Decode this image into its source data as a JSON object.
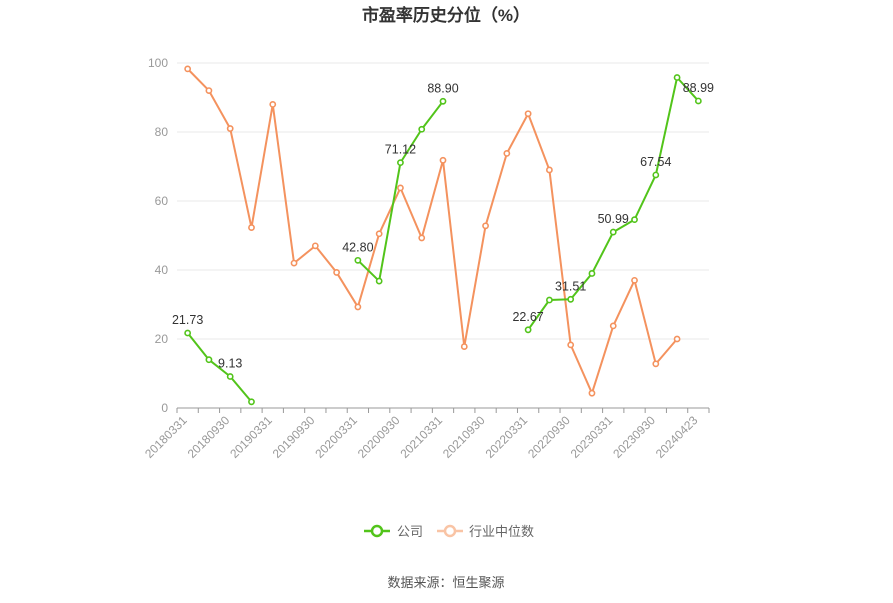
{
  "chart_data": {
    "type": "line",
    "title": "市盈率历史分位（%）",
    "xlabel": "",
    "ylabel": "",
    "ylim": [
      0,
      100
    ],
    "yticks": [
      0,
      20,
      40,
      60,
      80,
      100
    ],
    "grid": true,
    "legend_position": "bottom",
    "categories": [
      "20180331",
      "20180630",
      "20180930",
      "20181231",
      "20190331",
      "20190630",
      "20190930",
      "20191231",
      "20200331",
      "20200630",
      "20200930",
      "20201231",
      "20210331",
      "20210630",
      "20210930",
      "20211231",
      "20220331",
      "20220630",
      "20220930",
      "20221231",
      "20230331",
      "20230630",
      "20230930",
      "20231231",
      "20240423"
    ],
    "xtick_labels": [
      "20180331",
      "20180930",
      "20190331",
      "20190930",
      "20200331",
      "20200930",
      "20210331",
      "20210930",
      "20220331",
      "20220930",
      "20230331",
      "20230930",
      "20240423"
    ],
    "series": [
      {
        "name": "公司",
        "color": "#52c41a",
        "values": [
          21.73,
          14.0,
          9.13,
          1.8,
          null,
          null,
          null,
          null,
          42.8,
          36.8,
          71.12,
          80.8,
          88.9,
          null,
          null,
          null,
          22.67,
          31.3,
          31.51,
          39.0,
          50.99,
          54.6,
          67.54,
          95.8,
          88.99
        ]
      },
      {
        "name": "行业中位数",
        "color": "#f4925e",
        "values": [
          98.3,
          92.0,
          81.0,
          52.3,
          88.0,
          42.0,
          47.0,
          39.3,
          29.3,
          50.5,
          63.8,
          49.3,
          71.8,
          17.8,
          52.8,
          73.8,
          85.3,
          69.0,
          18.3,
          4.3,
          23.8,
          37.0,
          12.8,
          20.0,
          null
        ]
      }
    ],
    "data_labels": [
      {
        "series": 0,
        "index": 0,
        "text": "21.73"
      },
      {
        "series": 0,
        "index": 2,
        "text": "9.13"
      },
      {
        "series": 0,
        "index": 8,
        "text": "42.80"
      },
      {
        "series": 0,
        "index": 10,
        "text": "71.12"
      },
      {
        "series": 0,
        "index": 12,
        "text": "88.90"
      },
      {
        "series": 0,
        "index": 16,
        "text": "22.67"
      },
      {
        "series": 0,
        "index": 18,
        "text": "31.51"
      },
      {
        "series": 0,
        "index": 20,
        "text": "50.99"
      },
      {
        "series": 0,
        "index": 22,
        "text": "67.54"
      },
      {
        "series": 0,
        "index": 24,
        "text": "88.99"
      }
    ]
  },
  "legend": {
    "company": "公司",
    "industry": "行业中位数"
  },
  "source": "数据来源：恒生聚源"
}
